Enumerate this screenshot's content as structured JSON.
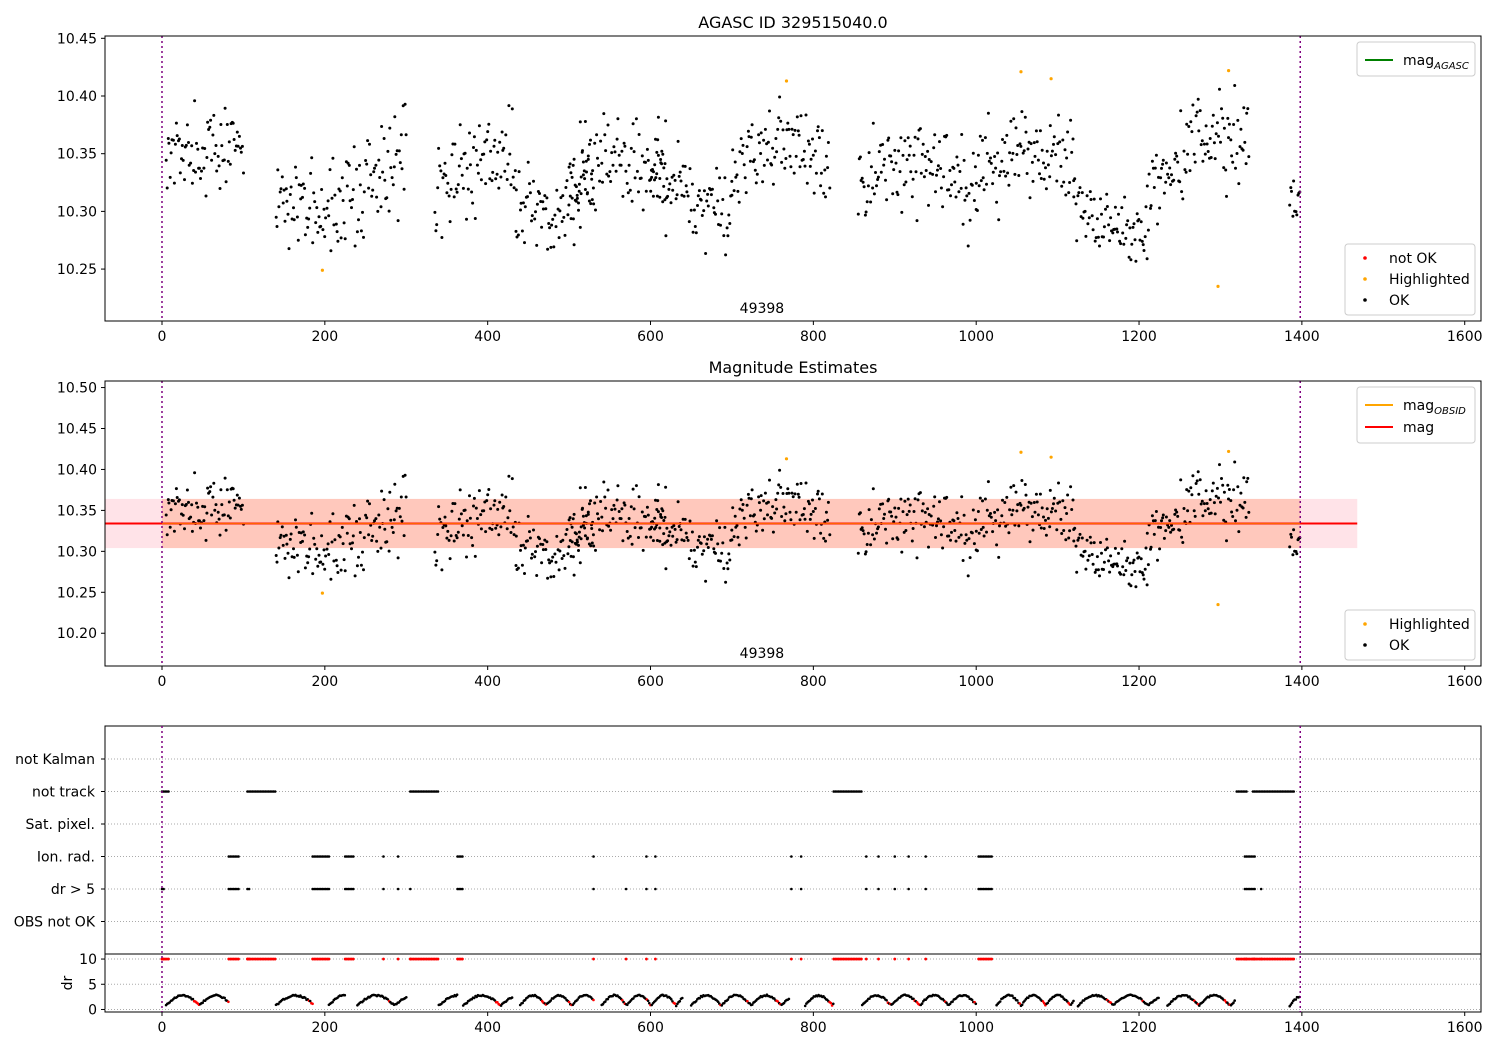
{
  "chart_data": [
    {
      "type": "scatter",
      "title": "AGASC ID 329515040.0",
      "annotation": "49398",
      "xlim": [
        -70,
        1620
      ],
      "ylim": [
        10.205,
        10.452
      ],
      "xticks": [
        0,
        200,
        400,
        600,
        800,
        1000,
        1200,
        1400,
        1600
      ],
      "yticks": [
        10.25,
        10.3,
        10.35,
        10.4,
        10.45
      ],
      "vlines": [
        0,
        1398
      ],
      "legend_lines": [
        {
          "main": "mag",
          "sub": "AGASC",
          "color": "#008000"
        }
      ],
      "legend_points": [
        {
          "label": "not OK",
          "color": "#ff0000"
        },
        {
          "label": "Highlighted",
          "color": "#ffa500"
        },
        {
          "label": "OK",
          "color": "#000000"
        }
      ],
      "highlighted": {
        "x": [
          197,
          767,
          1055,
          1092,
          1297,
          1310
        ],
        "y": [
          10.249,
          10.413,
          10.421,
          10.415,
          10.235,
          10.422
        ]
      },
      "ok_segments": [
        {
          "x": [
            5,
            100
          ],
          "cx": [
            0,
            45,
            100
          ],
          "cy": [
            10.345,
            10.35,
            10.36
          ],
          "amp": 0.018
        },
        {
          "x": [
            140,
            300
          ],
          "cx": [
            140,
            200,
            250,
            300
          ],
          "cy": [
            10.315,
            10.3,
            10.32,
            10.35
          ],
          "amp": 0.022
        },
        {
          "x": [
            335,
            435
          ],
          "cx": [
            335,
            380,
            435
          ],
          "cy": [
            10.315,
            10.345,
            10.34
          ],
          "amp": 0.02
        },
        {
          "x": [
            435,
            530
          ],
          "cx": [
            435,
            480,
            530
          ],
          "cy": [
            10.31,
            10.3,
            10.32
          ],
          "amp": 0.018
        },
        {
          "x": [
            500,
            620
          ],
          "cx": [
            500,
            550,
            620
          ],
          "cy": [
            10.33,
            10.35,
            10.34
          ],
          "amp": 0.018
        },
        {
          "x": [
            600,
            700
          ],
          "cx": [
            600,
            650,
            700
          ],
          "cy": [
            10.33,
            10.31,
            10.31
          ],
          "amp": 0.018
        },
        {
          "x": [
            700,
            820
          ],
          "cx": [
            700,
            760,
            820
          ],
          "cy": [
            10.33,
            10.36,
            10.335
          ],
          "amp": 0.018
        },
        {
          "x": [
            855,
            1000
          ],
          "cx": [
            855,
            920,
            1000
          ],
          "cy": [
            10.33,
            10.34,
            10.32
          ],
          "amp": 0.02
        },
        {
          "x": [
            1000,
            1120
          ],
          "cx": [
            1000,
            1060,
            1120
          ],
          "cy": [
            10.335,
            10.35,
            10.34
          ],
          "amp": 0.018
        },
        {
          "x": [
            1120,
            1210
          ],
          "cx": [
            1120,
            1160,
            1210
          ],
          "cy": [
            10.31,
            10.29,
            10.28
          ],
          "amp": 0.015
        },
        {
          "x": [
            1210,
            1335
          ],
          "cx": [
            1210,
            1270,
            1335
          ],
          "cy": [
            10.32,
            10.355,
            10.365
          ],
          "amp": 0.02
        },
        {
          "x": [
            1385,
            1398
          ],
          "cx": [
            1385,
            1398
          ],
          "cy": [
            10.31,
            10.3
          ],
          "amp": 0.015
        }
      ]
    },
    {
      "type": "scatter",
      "title": "Magnitude Estimates",
      "annotation": "49398",
      "xlim": [
        -70,
        1620
      ],
      "ylim": [
        10.16,
        10.508
      ],
      "xticks": [
        0,
        200,
        400,
        600,
        800,
        1000,
        1200,
        1400,
        1600
      ],
      "yticks": [
        10.2,
        10.25,
        10.3,
        10.35,
        10.4,
        10.45,
        10.5
      ],
      "vlines": [
        0,
        1398
      ],
      "mag": 10.334,
      "band_obsid": [
        10.304,
        10.364
      ],
      "band_x_end": 1468,
      "legend_lines": [
        {
          "main": "mag",
          "sub": "OBSID",
          "color": "#ffa500"
        },
        {
          "main": "mag",
          "sub": "",
          "color": "#ff0000"
        }
      ],
      "legend_points": [
        {
          "label": "Highlighted",
          "color": "#ffa500"
        },
        {
          "label": "OK",
          "color": "#000000"
        }
      ]
    },
    {
      "type": "scatter",
      "title": "",
      "xlim": [
        -70,
        1620
      ],
      "xticks": [
        0,
        200,
        400,
        600,
        800,
        1000,
        1200,
        1400,
        1600
      ],
      "vlines": [
        0,
        1398
      ],
      "flag_categories": [
        "not Kalman",
        "not track",
        "Sat. pixel.",
        "Ion. rad.",
        "dr > 5",
        "OBS not OK"
      ],
      "flag_ranges": {
        "not track": [
          [
            0,
            8
          ],
          [
            105,
            140
          ],
          [
            305,
            340
          ],
          [
            825,
            860
          ],
          [
            1320,
            1333
          ],
          [
            1340,
            1390
          ]
        ],
        "Ion. rad.": [
          [
            82,
            95
          ],
          [
            185,
            205
          ],
          [
            225,
            235
          ],
          [
            363,
            370
          ],
          [
            1003,
            1020
          ],
          [
            1330,
            1343
          ]
        ],
        "dr > 5": [
          [
            0,
            3
          ],
          [
            82,
            95
          ],
          [
            105,
            108
          ],
          [
            185,
            205
          ],
          [
            225,
            235
          ],
          [
            363,
            370
          ],
          [
            1003,
            1020
          ],
          [
            1330,
            1343
          ]
        ]
      },
      "flag_points": {
        "Ion. rad.": [
          272,
          290,
          530,
          595,
          606,
          773,
          785,
          865,
          880,
          900,
          917,
          938
        ],
        "dr > 5": [
          272,
          290,
          305,
          530,
          570,
          595,
          606,
          773,
          785,
          865,
          880,
          900,
          917,
          938,
          1350
        ]
      },
      "dr_ylabel": "dr",
      "dr_yticks": [
        0,
        5,
        10
      ],
      "dr_ylim": [
        -0.5,
        11
      ]
    }
  ]
}
